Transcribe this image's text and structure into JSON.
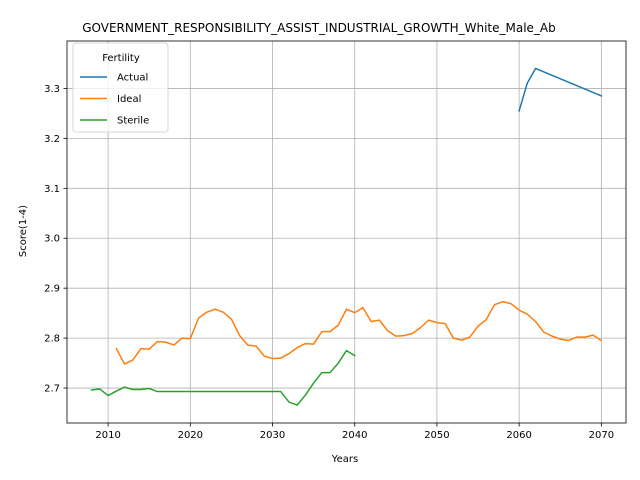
{
  "chart_data": {
    "type": "line",
    "title": "GOVERNMENT_RESPONSIBILITY_ASSIST_INDUSTRIAL_GROWTH_White_Male_Ab",
    "xlabel": "Years",
    "ylabel": "Score(1-4)",
    "xlim": [
      2005,
      2073
    ],
    "ylim": [
      2.63,
      3.395
    ],
    "xticks": [
      2010,
      2020,
      2030,
      2040,
      2050,
      2060,
      2070
    ],
    "yticks": [
      2.7,
      2.8,
      2.9,
      3.0,
      3.1,
      3.2,
      3.3
    ],
    "xtick_labels": [
      "2010",
      "2020",
      "2030",
      "2040",
      "2050",
      "2060",
      "2070"
    ],
    "ytick_labels": [
      "2.7",
      "2.8",
      "2.9",
      "3.0",
      "3.1",
      "3.2",
      "3.3"
    ],
    "grid": true,
    "legend": {
      "title": "Fertility",
      "position": "top-left"
    },
    "series": [
      {
        "name": "Actual",
        "color": "#1f77b4",
        "x": [
          2060,
          2061,
          2062,
          2070
        ],
        "y": [
          3.255,
          3.311,
          3.34,
          3.285
        ]
      },
      {
        "name": "Ideal",
        "color": "#ff7f0e",
        "x": [
          2011,
          2012,
          2013,
          2014,
          2015,
          2016,
          2017,
          2018,
          2019,
          2020,
          2021,
          2022,
          2023,
          2024,
          2025,
          2026,
          2027,
          2028,
          2029,
          2030,
          2031,
          2032,
          2033,
          2034,
          2035,
          2036,
          2037,
          2038,
          2039,
          2040,
          2041,
          2042,
          2043,
          2044,
          2045,
          2046,
          2047,
          2048,
          2049,
          2050,
          2051,
          2052,
          2053,
          2054,
          2055,
          2056,
          2057,
          2058,
          2059,
          2060,
          2061,
          2062,
          2063,
          2064,
          2065,
          2066,
          2067,
          2068,
          2069,
          2070
        ],
        "y": [
          2.779,
          2.748,
          2.756,
          2.779,
          2.778,
          2.793,
          2.792,
          2.786,
          2.8,
          2.799,
          2.84,
          2.852,
          2.858,
          2.852,
          2.838,
          2.805,
          2.786,
          2.784,
          2.764,
          2.759,
          2.76,
          2.769,
          2.781,
          2.789,
          2.788,
          2.813,
          2.813,
          2.826,
          2.858,
          2.851,
          2.861,
          2.833,
          2.836,
          2.815,
          2.804,
          2.805,
          2.809,
          2.821,
          2.836,
          2.831,
          2.829,
          2.8,
          2.796,
          2.802,
          2.824,
          2.837,
          2.867,
          2.873,
          2.869,
          2.856,
          2.848,
          2.833,
          2.812,
          2.804,
          2.798,
          2.795,
          2.802,
          2.802,
          2.806,
          2.795
        ]
      },
      {
        "name": "Sterile",
        "color": "#2ca02c",
        "x": [
          2008,
          2009,
          2010,
          2011,
          2012,
          2013,
          2014,
          2015,
          2016,
          2017,
          2018,
          2019,
          2020,
          2021,
          2022,
          2023,
          2024,
          2025,
          2026,
          2027,
          2028,
          2029,
          2030,
          2031,
          2032,
          2033,
          2034,
          2035,
          2036,
          2037,
          2038,
          2039,
          2040
        ],
        "y": [
          2.696,
          2.698,
          2.685,
          2.694,
          2.702,
          2.697,
          2.697,
          2.699,
          2.693,
          2.693,
          2.693,
          2.693,
          2.693,
          2.693,
          2.693,
          2.693,
          2.693,
          2.693,
          2.693,
          2.693,
          2.693,
          2.693,
          2.693,
          2.693,
          2.672,
          2.666,
          2.686,
          2.71,
          2.731,
          2.731,
          2.75,
          2.775,
          2.765
        ]
      }
    ]
  }
}
